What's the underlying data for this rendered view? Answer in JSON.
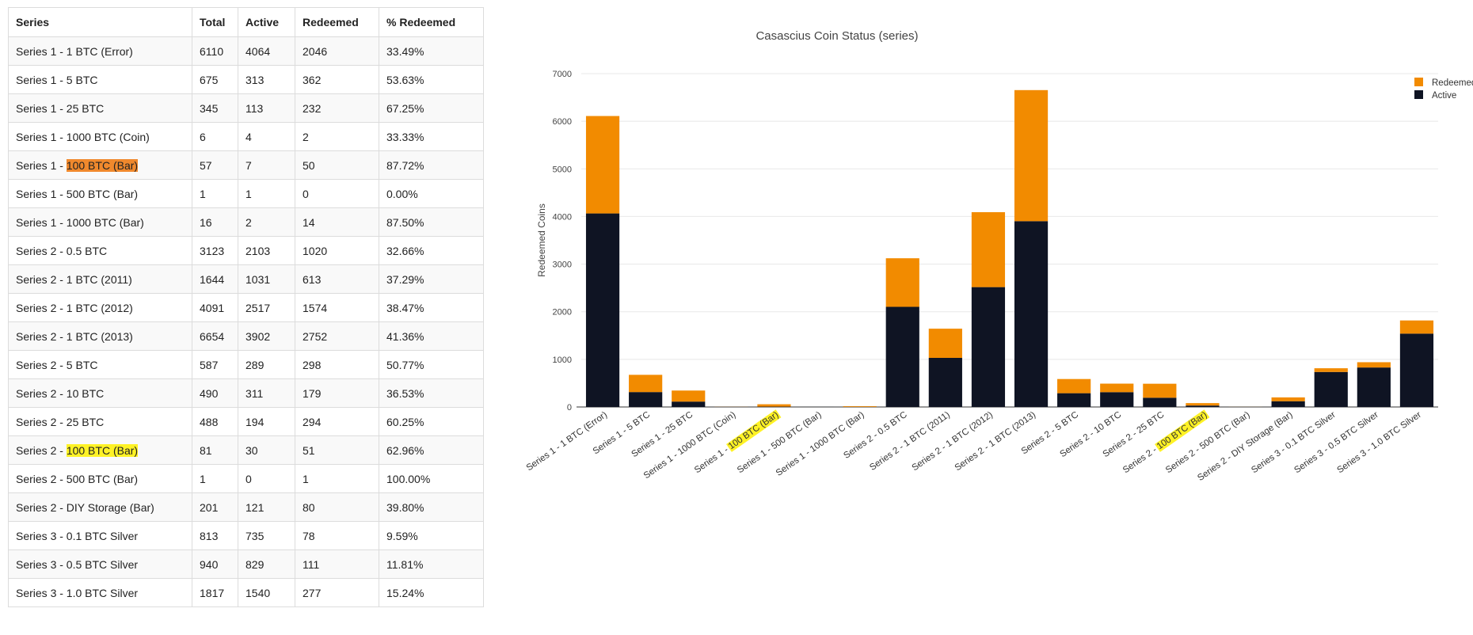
{
  "table": {
    "headers": [
      "Series",
      "Total",
      "Active",
      "Redeemed",
      "% Redeemed"
    ],
    "rows": [
      {
        "series": "Series 1 - 1 BTC (Error)",
        "total": "6110",
        "active": "4064",
        "redeemed": "2046",
        "pct": "33.49%"
      },
      {
        "series": "Series 1 - 5 BTC",
        "total": "675",
        "active": "313",
        "redeemed": "362",
        "pct": "53.63%"
      },
      {
        "series": "Series 1 - 25 BTC",
        "total": "345",
        "active": "113",
        "redeemed": "232",
        "pct": "67.25%"
      },
      {
        "series": "Series 1 - 1000 BTC (Coin)",
        "total": "6",
        "active": "4",
        "redeemed": "2",
        "pct": "33.33%"
      },
      {
        "series_prefix": "Series 1 - ",
        "series_highlight": "100 BTC (Bar)",
        "highlight": "orange",
        "total": "57",
        "active": "7",
        "redeemed": "50",
        "pct": "87.72%"
      },
      {
        "series": "Series 1 - 500 BTC (Bar)",
        "total": "1",
        "active": "1",
        "redeemed": "0",
        "pct": "0.00%"
      },
      {
        "series": "Series 1 - 1000 BTC (Bar)",
        "total": "16",
        "active": "2",
        "redeemed": "14",
        "pct": "87.50%"
      },
      {
        "series": "Series 2 - 0.5 BTC",
        "total": "3123",
        "active": "2103",
        "redeemed": "1020",
        "pct": "32.66%"
      },
      {
        "series": "Series 2 - 1 BTC (2011)",
        "total": "1644",
        "active": "1031",
        "redeemed": "613",
        "pct": "37.29%"
      },
      {
        "series": "Series 2 - 1 BTC (2012)",
        "total": "4091",
        "active": "2517",
        "redeemed": "1574",
        "pct": "38.47%"
      },
      {
        "series": "Series 2 - 1 BTC (2013)",
        "total": "6654",
        "active": "3902",
        "redeemed": "2752",
        "pct": "41.36%"
      },
      {
        "series": "Series 2 - 5 BTC",
        "total": "587",
        "active": "289",
        "redeemed": "298",
        "pct": "50.77%"
      },
      {
        "series": "Series 2 - 10 BTC",
        "total": "490",
        "active": "311",
        "redeemed": "179",
        "pct": "36.53%"
      },
      {
        "series": "Series 2 - 25 BTC",
        "total": "488",
        "active": "194",
        "redeemed": "294",
        "pct": "60.25%"
      },
      {
        "series_prefix": "Series 2 - ",
        "series_highlight": "100 BTC (Bar)",
        "highlight": "yellow",
        "total": "81",
        "active": "30",
        "redeemed": "51",
        "pct": "62.96%"
      },
      {
        "series": "Series 2 - 500 BTC (Bar)",
        "total": "1",
        "active": "0",
        "redeemed": "1",
        "pct": "100.00%"
      },
      {
        "series": "Series 2 - DIY Storage (Bar)",
        "total": "201",
        "active": "121",
        "redeemed": "80",
        "pct": "39.80%"
      },
      {
        "series": "Series 3 - 0.1 BTC Silver",
        "total": "813",
        "active": "735",
        "redeemed": "78",
        "pct": "9.59%"
      },
      {
        "series": "Series 3 - 0.5 BTC Silver",
        "total": "940",
        "active": "829",
        "redeemed": "111",
        "pct": "11.81%"
      },
      {
        "series": "Series 3 - 1.0 BTC Silver",
        "total": "1817",
        "active": "1540",
        "redeemed": "277",
        "pct": "15.24%"
      }
    ]
  },
  "colors": {
    "active": "#0f1423",
    "redeemed": "#f28b00",
    "highlight_orange": "#f0892d",
    "highlight_yellow": "#fff225",
    "grid": "#e8e8e8"
  },
  "chart_data": {
    "type": "bar",
    "stacked": true,
    "title": "Casascius Coin Status (series)",
    "xlabel": "",
    "ylabel": "Redeemed Coins",
    "ylim": [
      0,
      7000
    ],
    "yticks": [
      0,
      1000,
      2000,
      3000,
      4000,
      5000,
      6000,
      7000
    ],
    "legend_position": "top-right",
    "categories": [
      "Series 1 - 1 BTC (Error)",
      "Series 1 - 5 BTC",
      "Series 1 - 25 BTC",
      "Series 1 - 1000 BTC (Coin)",
      "Series 1 - 100 BTC (Bar)",
      "Series 1 - 500 BTC (Bar)",
      "Series 1 - 1000 BTC (Bar)",
      "Series 2 - 0.5 BTC",
      "Series 2 - 1 BTC (2011)",
      "Series 2 - 1 BTC (2012)",
      "Series 2 - 1 BTC (2013)",
      "Series 2 - 5 BTC",
      "Series 2 - 10 BTC",
      "Series 2 - 25 BTC",
      "Series 2 - 100 BTC (Bar)",
      "Series 2 - 500 BTC (Bar)",
      "Series 2 - DIY Storage (Bar)",
      "Series 3 - 0.1 BTC Silver",
      "Series 3 - 0.5 BTC Silver",
      "Series 3 - 1.0 BTC Silver"
    ],
    "label_highlights": [
      {
        "index": 4,
        "prefix": "Series 1 - ",
        "highlight": "100 BTC (Bar)",
        "color": "yellow"
      },
      {
        "index": 14,
        "prefix": "Series 2 - ",
        "highlight": "100 BTC (Bar)",
        "color": "yellow"
      }
    ],
    "series": [
      {
        "name": "Active",
        "color": "#0f1423",
        "values": [
          4064,
          313,
          113,
          4,
          7,
          1,
          2,
          2103,
          1031,
          2517,
          3902,
          289,
          311,
          194,
          30,
          0,
          121,
          735,
          829,
          1540
        ]
      },
      {
        "name": "Redeemed",
        "color": "#f28b00",
        "values": [
          2046,
          362,
          232,
          2,
          50,
          0,
          14,
          1020,
          613,
          1574,
          2752,
          298,
          179,
          294,
          51,
          1,
          80,
          78,
          111,
          277
        ]
      }
    ],
    "legend": [
      "Redeemed",
      "Active"
    ]
  }
}
